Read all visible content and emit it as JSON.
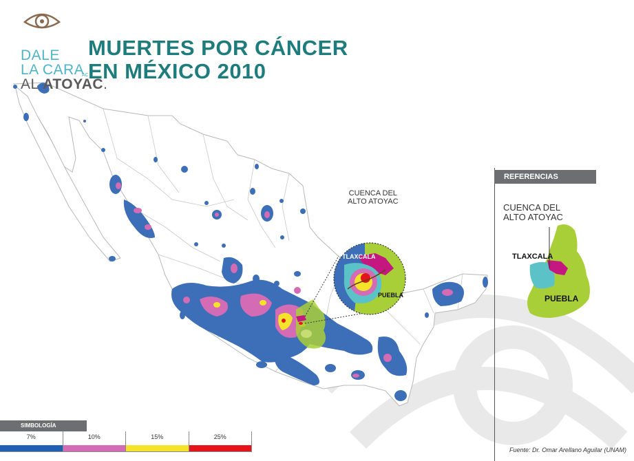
{
  "logo": {
    "line1": "DALE",
    "line2": "LA CARA",
    "ac": "AC",
    "line3_prefix": "AL ",
    "line3_bold": "ATOYAC",
    "line3_suffix": ".",
    "icon": "eye-icon"
  },
  "title": {
    "line1": "MUERTES POR CÁNCER",
    "line2": "EN MÉXICO 2010"
  },
  "map": {
    "label_cuenca": [
      "CUENCA DEL",
      "ALTO ATOYAC"
    ],
    "inset_labels": {
      "tlaxcala": "TLAXCALA",
      "puebla": "PUEBLA"
    }
  },
  "referencias": {
    "header": "REFERENCIAS",
    "cuenca": [
      "CUENCA DEL",
      "ALTO ATOYAC"
    ],
    "tlaxcala": "TLAXCALA",
    "puebla": "PUEBLA"
  },
  "simbologia": {
    "header": "SIMBOLOGÍA",
    "items": [
      {
        "label": "7%",
        "color": "#1f5fb4"
      },
      {
        "label": "10%",
        "color": "#d36bb5"
      },
      {
        "label": "15%",
        "color": "#f4e32a"
      },
      {
        "label": "25%",
        "color": "#e4141b"
      }
    ]
  },
  "colors": {
    "title": "#1e7c7c",
    "blue_zone": "#3d6fb8",
    "pink_zone": "#d36bb5",
    "yellow_zone": "#f4e32a",
    "red_zone": "#e4141b",
    "puebla_green": "#a9cf38",
    "tlaxcala_magenta": "#c4177f",
    "basin_teal": "#5bc3c8"
  },
  "source": "Fuente: Dr. Omar Arellano Aguilar (UNAM)"
}
